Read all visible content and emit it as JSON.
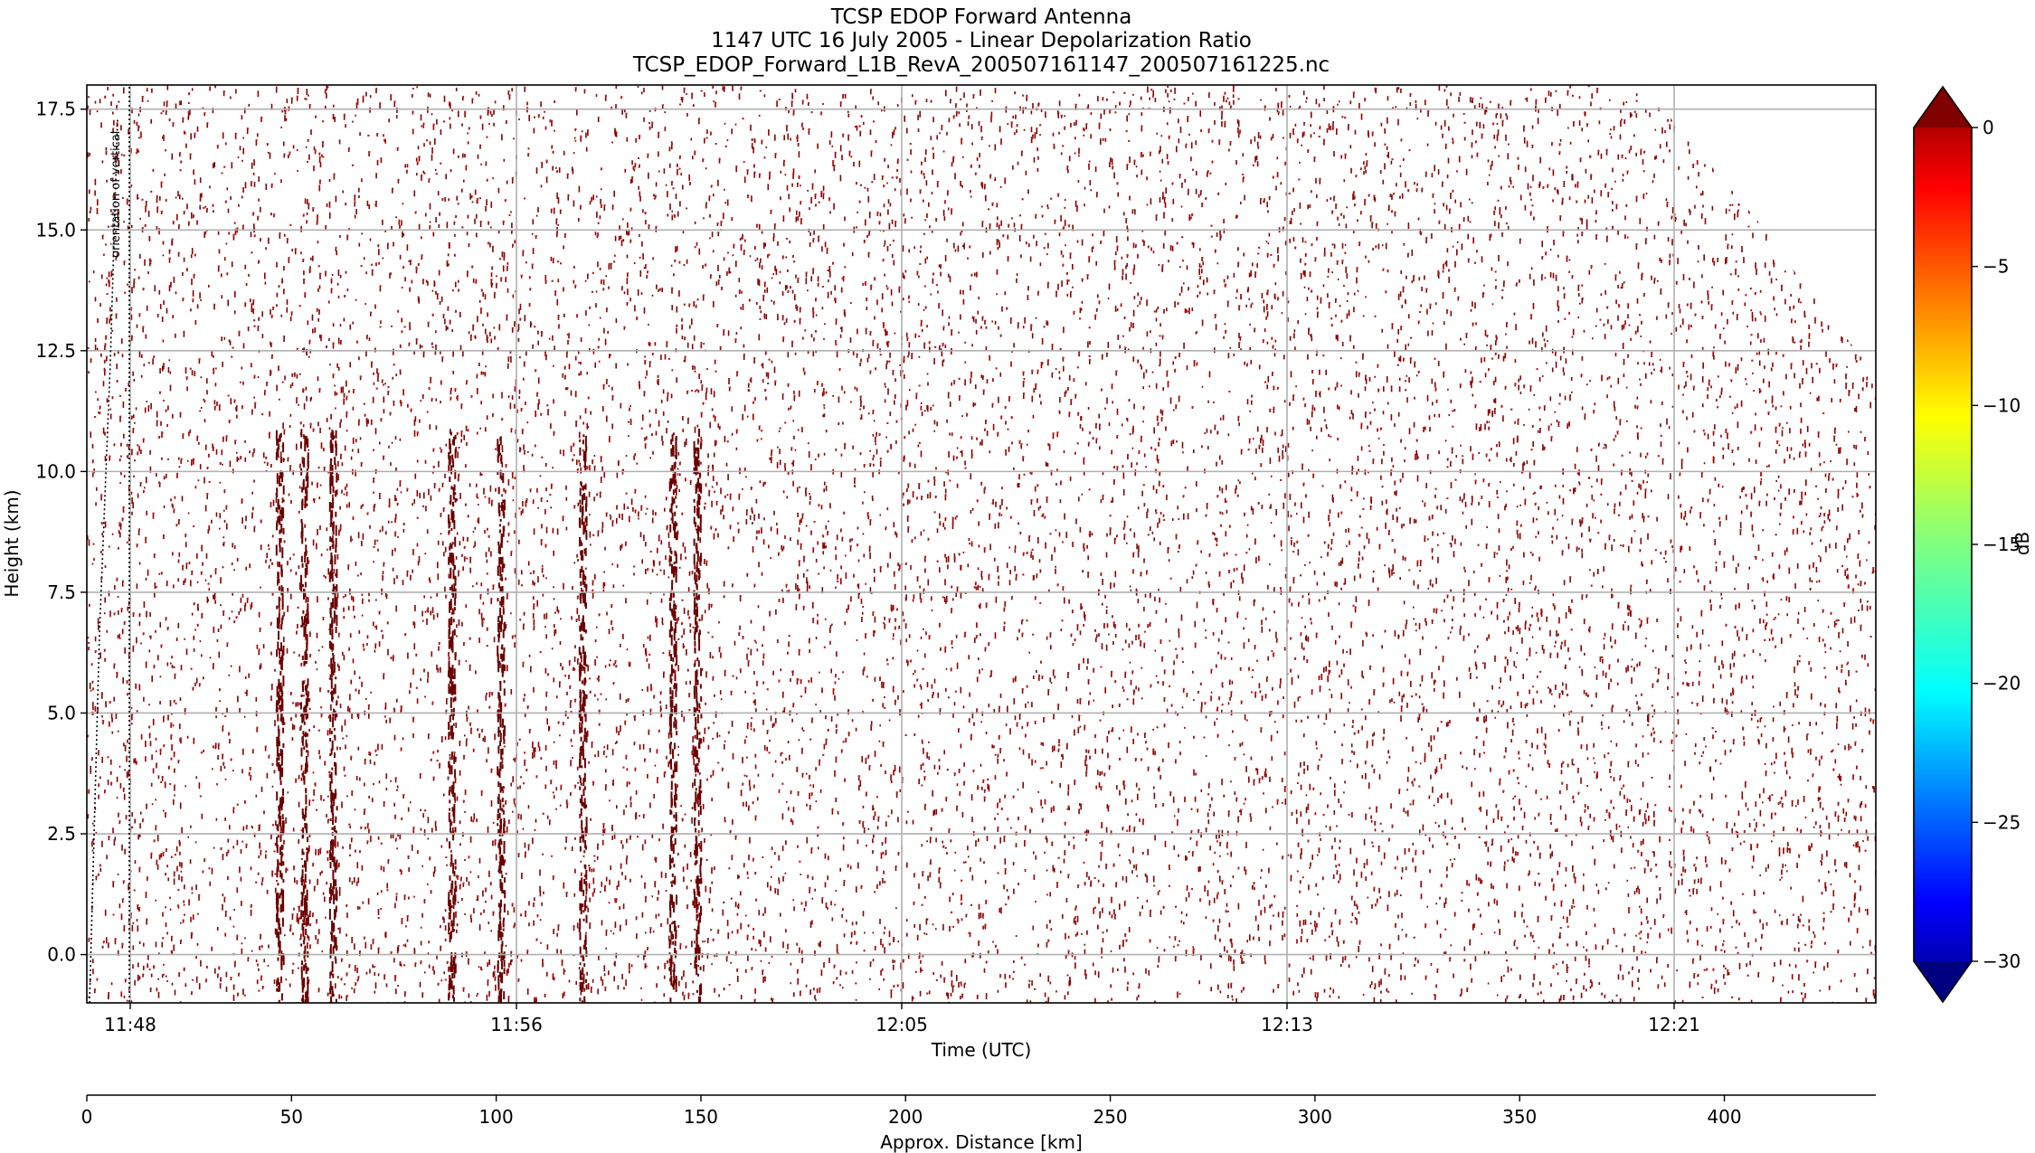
{
  "chart_data": {
    "type": "heatmap",
    "title_lines": [
      "TCSP EDOP Forward Antenna",
      "1147 UTC 16 July 2005 - Linear Depolarization Ratio",
      "TCSP_EDOP_Forward_L1B_RevA_200507161147_200507161225.nc"
    ],
    "xlabel": "Time (UTC)",
    "ylabel": "Height (km)",
    "x_tick_labels": [
      "11:48",
      "11:56",
      "12:05",
      "12:13",
      "12:21"
    ],
    "y_ticks": [
      0.0,
      2.5,
      5.0,
      7.5,
      10.0,
      12.5,
      15.0,
      17.5
    ],
    "y_tick_labels": [
      "0.0",
      "2.5",
      "5.0",
      "7.5",
      "10.0",
      "12.5",
      "15.0",
      "17.5"
    ],
    "ylim": [
      -1.0,
      18.0
    ],
    "grid": true,
    "annotation": "orientation of vertical",
    "secondary_axis": {
      "label": "Approx. Distance [km]",
      "ticks": [
        0,
        50,
        100,
        150,
        200,
        250,
        300,
        350,
        400
      ],
      "xlim": [
        0,
        437
      ]
    },
    "colorbar": {
      "label": "dB",
      "colormap": "jet",
      "range": [
        -30,
        0
      ],
      "extend": "both",
      "ticks": [
        0,
        -5,
        -10,
        -15,
        -20,
        -25,
        -30
      ],
      "tick_labels": [
        "0",
        "−5",
        "−10",
        "−15",
        "−20",
        "−25",
        "−30"
      ]
    },
    "data_color": "#8b0000",
    "top_boundary": {
      "description_points": [
        [
          380,
          18.0
        ],
        [
          390,
          17.0
        ],
        [
          400,
          16.0
        ],
        [
          410,
          15.0
        ],
        [
          420,
          13.8
        ],
        [
          437,
          12.0
        ]
      ]
    },
    "strong_streaks_distance_km": [
      47,
      53,
      60,
      89,
      101,
      121,
      143,
      149
    ]
  }
}
